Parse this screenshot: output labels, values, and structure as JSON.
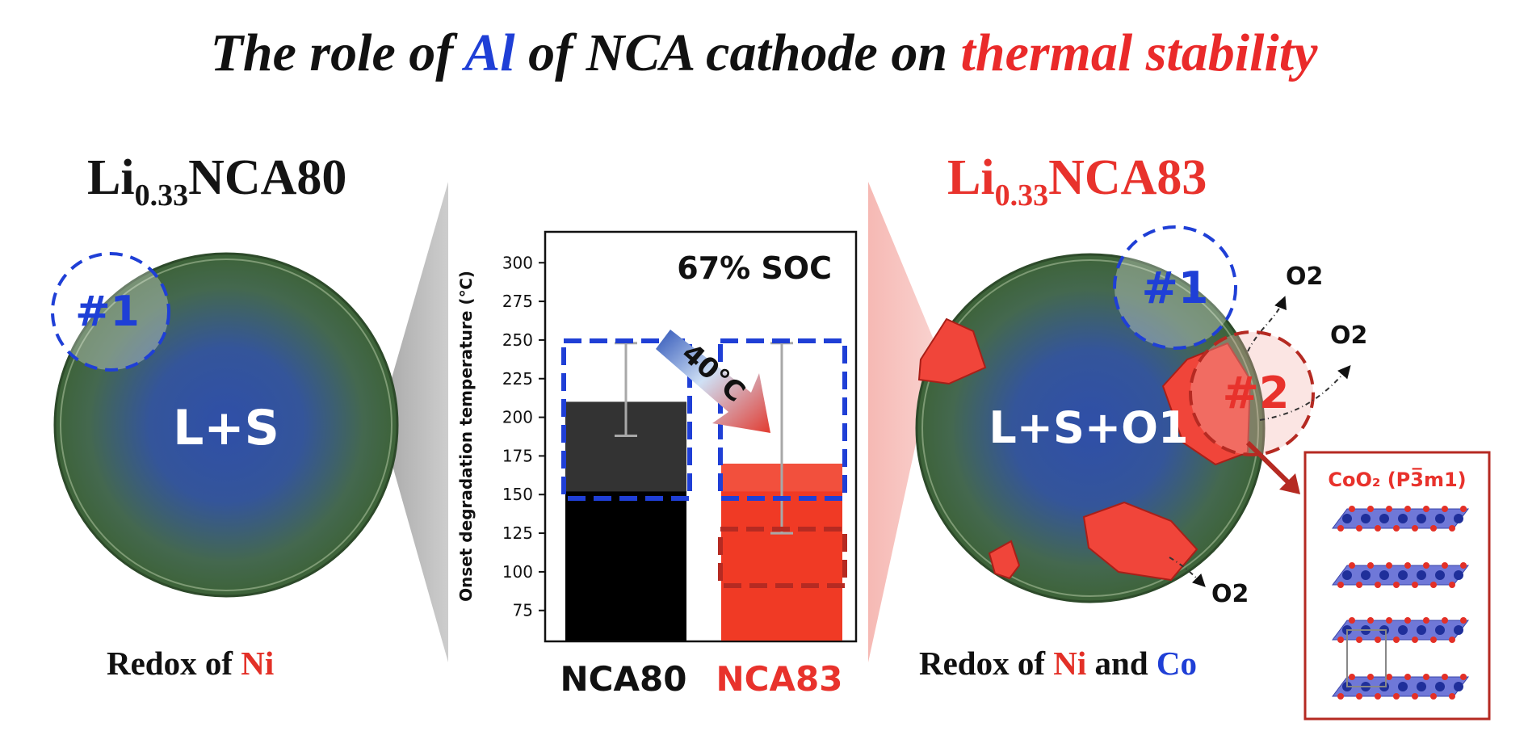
{
  "title": {
    "part1": "The role of ",
    "al": "Al",
    "part2": " of NCA cathode on ",
    "thermal": "thermal stability"
  },
  "left_sample": {
    "prefix": "Li",
    "subscript": "0.33",
    "suffix": "NCA80"
  },
  "right_sample": {
    "prefix": "Li",
    "subscript": "0.33",
    "suffix": "NCA83"
  },
  "left_particle": {
    "region_label": "#1",
    "phase_label": "L+S"
  },
  "right_particle": {
    "region1_label": "#1",
    "region2_label": "#2",
    "phase_label": "L+S+O1",
    "oxygen_labels": [
      "O2",
      "O2",
      "O2"
    ]
  },
  "left_redox": {
    "prefix": "Redox of ",
    "element": "Ni"
  },
  "right_redox": {
    "prefix": "Redox of ",
    "element1": "Ni",
    "joiner": " and ",
    "element2": "Co"
  },
  "structure_box": {
    "title": "CoO₂ (P3̅m1)"
  },
  "colors": {
    "blue": "#1f3fd6",
    "red": "#e8322c",
    "dark_red": "#b52a22",
    "particle_center": "#2f4fa8",
    "particle_edge": "#4a7040",
    "bar_nca80": "#000000",
    "bar_nca83": "#f03a25"
  },
  "chart_data": {
    "type": "bar",
    "annotation": "67% SOC",
    "shift_label": "40°C",
    "ylabel": "Onset degradation temperature (℃)",
    "categories": [
      "NCA80",
      "NCA83"
    ],
    "values": [
      210,
      170
    ],
    "error_low": [
      188,
      125
    ],
    "error_high": [
      248,
      248
    ],
    "ylim": [
      55,
      320
    ],
    "yticks": [
      75,
      100,
      125,
      150,
      175,
      200,
      225,
      250,
      275,
      300
    ],
    "grid": false
  }
}
